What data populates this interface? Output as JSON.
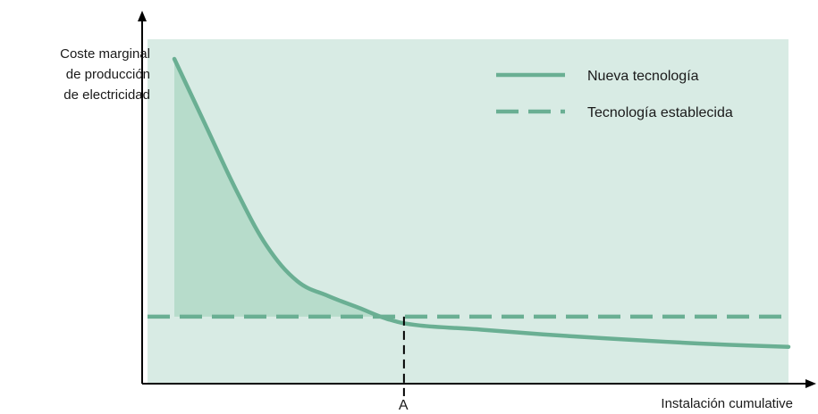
{
  "chart_data": {
    "type": "line",
    "ylabel_lines": [
      "Coste marginal",
      "de producción",
      "de electricidad"
    ],
    "xlabel": "Instalación cumulative",
    "x_marker": {
      "label": "A"
    },
    "series": [
      {
        "name": "Nueva tecnología",
        "style": "solid",
        "x": [
          0,
          0.05,
          0.1,
          0.15,
          0.2,
          0.25,
          0.3,
          0.35,
          0.4,
          0.5,
          0.6,
          0.7,
          0.8,
          0.9,
          1.0
        ],
        "y": [
          1.0,
          0.78,
          0.56,
          0.37,
          0.25,
          0.2,
          0.16,
          0.12,
          0.1,
          0.086,
          0.07,
          0.057,
          0.045,
          0.035,
          0.028
        ]
      },
      {
        "name": "Tecnología establecida",
        "style": "dashed",
        "y_constant": 0.13
      }
    ],
    "shaded_region": "area between Nueva tecnología and Tecnología establecida up to A",
    "grid": false,
    "legend": "top-right",
    "colors": {
      "line": "#6aaf93",
      "plot_bg": "#d8ebe4",
      "shade": "#b7dccb",
      "axis": "#000000"
    }
  }
}
